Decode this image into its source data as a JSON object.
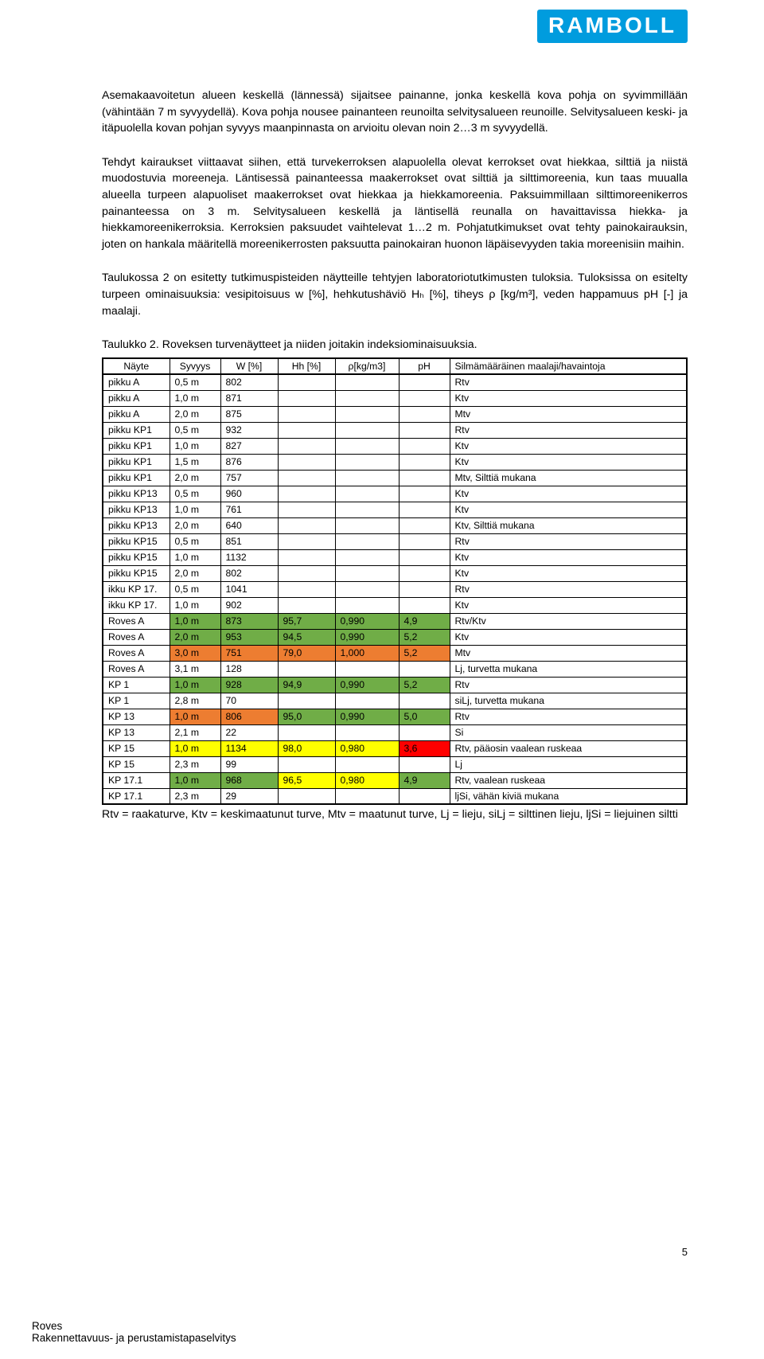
{
  "logo_text": "RAMBOLL",
  "paragraphs": [
    "Asemakaavoitetun alueen keskellä (lännessä) sijaitsee painanne, jonka keskellä kova pohja on syvimmillään (vähintään 7 m syvyydellä). Kova pohja nousee painanteen reunoilta selvitysalueen reunoille. Selvitysalueen keski- ja itäpuolella kovan pohjan syvyys maanpinnasta on arvioitu olevan noin 2…3 m syvyydellä.",
    "Tehdyt kairaukset viittaavat siihen, että turvekerroksen alapuolella olevat kerrokset ovat hiekkaa, silttiä ja niistä muodostuvia moreeneja. Läntisessä painanteessa maakerrokset ovat silttiä ja silttimoreenia, kun taas muualla alueella turpeen alapuoliset maakerrokset ovat hiekkaa ja hiekkamoreenia. Paksuimmillaan silttimoreenikerros painanteessa on 3 m. Selvitysalueen keskellä ja läntisellä reunalla on havaittavissa hiekka- ja hiekkamoreenikerroksia. Kerroksien paksuudet vaihtelevat 1…2 m. Pohjatutkimukset ovat tehty painokairauksin, joten on hankala määritellä moreenikerrosten paksuutta painokairan huonon läpäisevyyden takia moreenisiin maihin.",
    "Taulukossa 2 on esitetty tutkimuspisteiden näytteille tehtyjen laboratoriotutkimusten tuloksia. Tuloksissa on esitelty turpeen ominaisuuksia: vesipitoisuus w [%], hehkutushäviö Hₕ [%], tiheys ρ [kg/m³], veden happamuus pH [-] ja maalaji."
  ],
  "caption": "Taulukko 2. Roveksen turvenäytteet ja niiden joitakin indeksiominaisuuksia.",
  "columns": [
    "Näyte",
    "Syvyys",
    "W [%]",
    "Hh [%]",
    "ρ[kg/m3]",
    "pH",
    "Silmämääräinen maalaji/havaintoja"
  ],
  "col_widths": [
    "84px",
    "64px",
    "72px",
    "72px",
    "80px",
    "64px",
    "auto"
  ],
  "colors": {
    "none": "#ffffff",
    "green": "#70ad47",
    "orange": "#ed7d31",
    "yellow": "#ffff00",
    "red": "#ff0000"
  },
  "rows": [
    {
      "cells": [
        "pikku A",
        "0,5 m",
        "802",
        "",
        "",
        "",
        "Rtv"
      ],
      "fills": [
        "none",
        "none",
        "none",
        "none",
        "none",
        "none",
        "none"
      ]
    },
    {
      "cells": [
        "pikku A",
        "1,0 m",
        "871",
        "",
        "",
        "",
        "Ktv"
      ],
      "fills": [
        "none",
        "none",
        "none",
        "none",
        "none",
        "none",
        "none"
      ]
    },
    {
      "cells": [
        "pikku A",
        "2,0 m",
        "875",
        "",
        "",
        "",
        "Mtv"
      ],
      "fills": [
        "none",
        "none",
        "none",
        "none",
        "none",
        "none",
        "none"
      ]
    },
    {
      "cells": [
        "pikku KP1",
        "0,5 m",
        "932",
        "",
        "",
        "",
        "Rtv"
      ],
      "fills": [
        "none",
        "none",
        "none",
        "none",
        "none",
        "none",
        "none"
      ]
    },
    {
      "cells": [
        "pikku KP1",
        "1,0 m",
        "827",
        "",
        "",
        "",
        "Ktv"
      ],
      "fills": [
        "none",
        "none",
        "none",
        "none",
        "none",
        "none",
        "none"
      ]
    },
    {
      "cells": [
        "pikku KP1",
        "1,5 m",
        "876",
        "",
        "",
        "",
        "Ktv"
      ],
      "fills": [
        "none",
        "none",
        "none",
        "none",
        "none",
        "none",
        "none"
      ]
    },
    {
      "cells": [
        "pikku KP1",
        "2,0 m",
        "757",
        "",
        "",
        "",
        "Mtv, Silttiä mukana"
      ],
      "fills": [
        "none",
        "none",
        "none",
        "none",
        "none",
        "none",
        "none"
      ]
    },
    {
      "cells": [
        "pikku KP13",
        "0,5 m",
        "960",
        "",
        "",
        "",
        "Ktv"
      ],
      "fills": [
        "none",
        "none",
        "none",
        "none",
        "none",
        "none",
        "none"
      ]
    },
    {
      "cells": [
        "pikku KP13",
        "1,0 m",
        "761",
        "",
        "",
        "",
        "Ktv"
      ],
      "fills": [
        "none",
        "none",
        "none",
        "none",
        "none",
        "none",
        "none"
      ]
    },
    {
      "cells": [
        "pikku KP13",
        "2,0 m",
        "640",
        "",
        "",
        "",
        "Ktv, Silttiä mukana"
      ],
      "fills": [
        "none",
        "none",
        "none",
        "none",
        "none",
        "none",
        "none"
      ]
    },
    {
      "cells": [
        "pikku KP15",
        "0,5 m",
        "851",
        "",
        "",
        "",
        "Rtv"
      ],
      "fills": [
        "none",
        "none",
        "none",
        "none",
        "none",
        "none",
        "none"
      ]
    },
    {
      "cells": [
        "pikku KP15",
        "1,0 m",
        "1132",
        "",
        "",
        "",
        "Ktv"
      ],
      "fills": [
        "none",
        "none",
        "none",
        "none",
        "none",
        "none",
        "none"
      ]
    },
    {
      "cells": [
        "pikku KP15",
        "2,0 m",
        "802",
        "",
        "",
        "",
        "Ktv"
      ],
      "fills": [
        "none",
        "none",
        "none",
        "none",
        "none",
        "none",
        "none"
      ]
    },
    {
      "cells": [
        "ikku KP 17.",
        "0,5 m",
        "1041",
        "",
        "",
        "",
        "Rtv"
      ],
      "fills": [
        "none",
        "none",
        "none",
        "none",
        "none",
        "none",
        "none"
      ]
    },
    {
      "cells": [
        "ikku KP 17.",
        "1,0 m",
        "902",
        "",
        "",
        "",
        "Ktv"
      ],
      "fills": [
        "none",
        "none",
        "none",
        "none",
        "none",
        "none",
        "none"
      ]
    },
    {
      "cells": [
        "Roves A",
        "1,0 m",
        "873",
        "95,7",
        "0,990",
        "4,9",
        "Rtv/Ktv"
      ],
      "fills": [
        "none",
        "green",
        "green",
        "green",
        "green",
        "green",
        "none"
      ]
    },
    {
      "cells": [
        "Roves A",
        "2,0 m",
        "953",
        "94,5",
        "0,990",
        "5,2",
        "Ktv"
      ],
      "fills": [
        "none",
        "green",
        "green",
        "green",
        "green",
        "green",
        "none"
      ]
    },
    {
      "cells": [
        "Roves A",
        "3,0 m",
        "751",
        "79,0",
        "1,000",
        "5,2",
        "Mtv"
      ],
      "fills": [
        "none",
        "orange",
        "orange",
        "orange",
        "orange",
        "orange",
        "none"
      ]
    },
    {
      "cells": [
        "Roves A",
        "3,1 m",
        "128",
        "",
        "",
        "",
        "Lj, turvetta mukana"
      ],
      "fills": [
        "none",
        "none",
        "none",
        "none",
        "none",
        "none",
        "none"
      ]
    },
    {
      "cells": [
        "KP 1",
        "1,0 m",
        "928",
        "94,9",
        "0,990",
        "5,2",
        "Rtv"
      ],
      "fills": [
        "none",
        "green",
        "green",
        "green",
        "green",
        "green",
        "none"
      ]
    },
    {
      "cells": [
        "KP 1",
        "2,8 m",
        "70",
        "",
        "",
        "",
        "siLj, turvetta mukana"
      ],
      "fills": [
        "none",
        "none",
        "none",
        "none",
        "none",
        "none",
        "none"
      ]
    },
    {
      "cells": [
        "KP 13",
        "1,0 m",
        "806",
        "95,0",
        "0,990",
        "5,0",
        "Rtv"
      ],
      "fills": [
        "none",
        "orange",
        "orange",
        "green",
        "green",
        "green",
        "none"
      ]
    },
    {
      "cells": [
        "KP 13",
        "2,1 m",
        "22",
        "",
        "",
        "",
        "Si"
      ],
      "fills": [
        "none",
        "none",
        "none",
        "none",
        "none",
        "none",
        "none"
      ]
    },
    {
      "cells": [
        "KP 15",
        "1,0 m",
        "1134",
        "98,0",
        "0,980",
        "3,6",
        "Rtv, pääosin vaalean ruskeaa"
      ],
      "fills": [
        "none",
        "yellow",
        "yellow",
        "yellow",
        "yellow",
        "red",
        "none"
      ]
    },
    {
      "cells": [
        "KP 15",
        "2,3 m",
        "99",
        "",
        "",
        "",
        "Lj"
      ],
      "fills": [
        "none",
        "none",
        "none",
        "none",
        "none",
        "none",
        "none"
      ]
    },
    {
      "cells": [
        "KP 17.1",
        "1,0 m",
        "968",
        "96,5",
        "0,980",
        "4,9",
        "Rtv, vaalean ruskeaa"
      ],
      "fills": [
        "none",
        "green",
        "green",
        "yellow",
        "yellow",
        "green",
        "none"
      ]
    },
    {
      "cells": [
        "KP 17.1",
        "2,3 m",
        "29",
        "",
        "",
        "",
        "ljSi, vähän kiviä mukana"
      ],
      "fills": [
        "none",
        "none",
        "none",
        "none",
        "none",
        "none",
        "none"
      ]
    }
  ],
  "legend": "Rtv = raakaturve, Ktv = keskimaatunut turve, Mtv = maatunut turve, Lj = lieju, siLj = silttinen lieju, ljSi = liejuinen siltti",
  "page_number": "5",
  "footer1": "Roves",
  "footer2": "Rakennettavuus- ja perustamistapaselvitys"
}
